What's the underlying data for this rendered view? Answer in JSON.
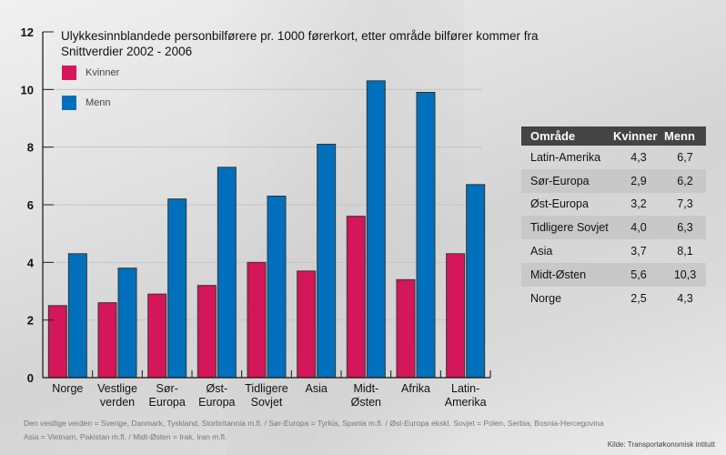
{
  "chart_data": {
    "type": "bar",
    "title": "Ulykkesinnblandede personbilførere pr. 1000 førerkort, etter område bilfører kommer fra",
    "subtitle": "Snittverdier 2002 - 2006",
    "xlabel": "",
    "ylabel": "",
    "ylim": [
      0,
      12
    ],
    "yticks": [
      0,
      2,
      4,
      6,
      8,
      10,
      12
    ],
    "grid": true,
    "legend_position": "top-left",
    "categories": [
      [
        "Norge"
      ],
      [
        "Vestlige",
        "verden"
      ],
      [
        "Sør-",
        "Europa"
      ],
      [
        "Øst-",
        "Europa"
      ],
      [
        "Tidligere",
        "Sovjet"
      ],
      [
        "Asia"
      ],
      [
        "Midt-",
        "Østen"
      ],
      [
        "Afrika"
      ],
      [
        "Latin-",
        "Amerika"
      ]
    ],
    "series": [
      {
        "name": "Kvinner",
        "color": "#d4165a",
        "values": [
          2.5,
          2.6,
          2.9,
          3.2,
          4.0,
          3.7,
          5.6,
          3.4,
          4.3
        ]
      },
      {
        "name": "Menn",
        "color": "#0070bd",
        "values": [
          4.3,
          3.8,
          6.2,
          7.3,
          6.3,
          8.1,
          10.3,
          9.9,
          6.7
        ]
      }
    ]
  },
  "table": {
    "headers": [
      "Område",
      "Kvinner",
      "Menn"
    ],
    "rows": [
      [
        "Latin-Amerika",
        "4,3",
        "6,7"
      ],
      [
        "Sør-Europa",
        "2,9",
        "6,2"
      ],
      [
        "Øst-Europa",
        "3,2",
        "7,3"
      ],
      [
        "Tidligere Sovjet",
        "4,0",
        "6,3"
      ],
      [
        "Asia",
        "3,7",
        "8,1"
      ],
      [
        "Midt-Østen",
        "5,6",
        "10,3"
      ],
      [
        "Norge",
        "2,5",
        "4,3"
      ]
    ]
  },
  "footnote": {
    "line1": "Den vestlige verden = Sverige, Danmark, Tyskland, Storbritannia m.fl. / Sør-Europa = Tyrkia, Spania m.fl.  /  Øst-Europa ekskl. Sovjet = Polen, Serbia, Bosnia-Hercegovina",
    "line2": "Asia = Vietnam, Pakistan m.fl.   /   Midt-Østen = Irak, Iran m.fl."
  },
  "source": "Kilde: Transportøkonomisk intitutt"
}
